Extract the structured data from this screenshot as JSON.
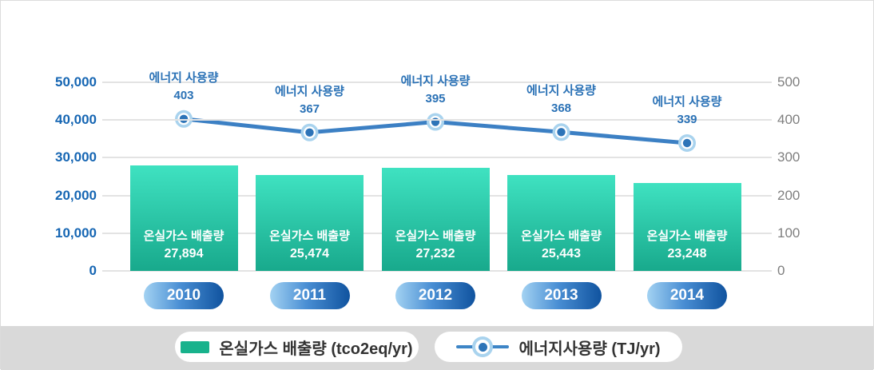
{
  "chart_data": {
    "type": "bar+line",
    "categories": [
      "2010",
      "2011",
      "2012",
      "2013",
      "2014"
    ],
    "series": [
      {
        "name": "온실가스 배출량 (tco2eq/yr)",
        "type": "bar",
        "axis": "left",
        "point_label_title": "온실가스 배출량",
        "values": [
          27894,
          25474,
          27232,
          25443,
          23248
        ],
        "value_labels": [
          "27,894",
          "25,474",
          "27,232",
          "25,443",
          "23,248"
        ]
      },
      {
        "name": "에너지사용량 (TJ/yr)",
        "type": "line",
        "axis": "right",
        "point_label_title": "에너지 사용량",
        "values": [
          403,
          367,
          395,
          368,
          339
        ],
        "value_labels": [
          "403",
          "367",
          "395",
          "368",
          "339"
        ]
      }
    ],
    "left_axis": {
      "min": 0,
      "max": 50000,
      "tick_labels": [
        "0",
        "10,000",
        "20,000",
        "30,000",
        "40,000",
        "50,000"
      ]
    },
    "right_axis": {
      "min": 0,
      "max": 500,
      "tick_labels": [
        "0",
        "100",
        "200",
        "300",
        "400",
        "500"
      ]
    },
    "grid": true,
    "legend_position": "bottom",
    "legend": [
      {
        "label": "온실가스 배출량 (tco2eq/yr)",
        "swatch": "bar-swatch"
      },
      {
        "label": "에너지사용량 (TJ/yr)",
        "swatch": "line-marker"
      }
    ],
    "colors": {
      "bar_top": "#3fe2c1",
      "bar_bottom": "#18a98c",
      "line": "#3c80c4",
      "marker_inner": "#2d74b8",
      "marker_ring": "#a9d3ee",
      "axis_left_text": "#1666b3",
      "axis_right_text": "#7f7f7f",
      "point_label_text": "#2b72b6",
      "year_pill_light": "#a3d2f2",
      "year_pill_mid": "#4a8fd4",
      "year_pill_dark": "#10539f",
      "legend_swatch": "#18b28c",
      "gridline": "#e3e3e3",
      "strip_bg": "#d9d9d9"
    }
  }
}
